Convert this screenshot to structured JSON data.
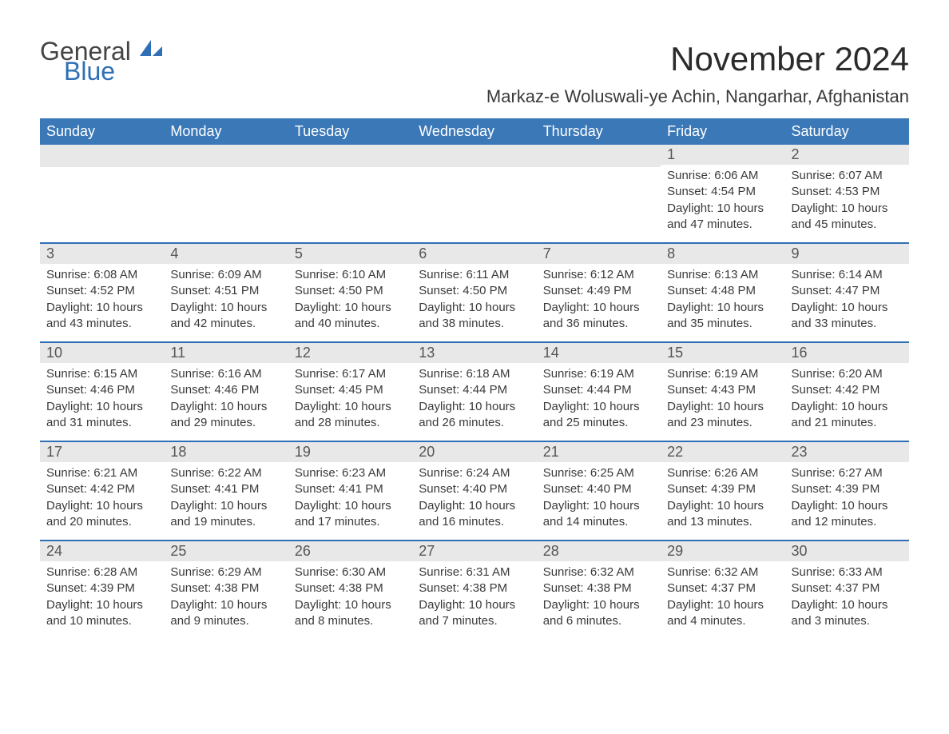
{
  "brand": {
    "general": "General",
    "blue": "Blue"
  },
  "colors": {
    "header_bg": "#3b78b8",
    "header_fg": "#ffffff",
    "daynum_bg": "#e8e8e8",
    "week_rule": "#2f6fb6",
    "text": "#3a3a3a",
    "brand_blue": "#2f6fb6",
    "page_bg": "#ffffff"
  },
  "title": "November 2024",
  "location": "Markaz-e Woluswali-ye Achin, Nangarhar, Afghanistan",
  "weekdays": [
    "Sunday",
    "Monday",
    "Tuesday",
    "Wednesday",
    "Thursday",
    "Friday",
    "Saturday"
  ],
  "layout": {
    "leading_blanks": 5,
    "days_in_month": 30
  },
  "days": {
    "1": {
      "sunrise": "6:06 AM",
      "sunset": "4:54 PM",
      "dl1": "Daylight: 10 hours",
      "dl2": "and 47 minutes."
    },
    "2": {
      "sunrise": "6:07 AM",
      "sunset": "4:53 PM",
      "dl1": "Daylight: 10 hours",
      "dl2": "and 45 minutes."
    },
    "3": {
      "sunrise": "6:08 AM",
      "sunset": "4:52 PM",
      "dl1": "Daylight: 10 hours",
      "dl2": "and 43 minutes."
    },
    "4": {
      "sunrise": "6:09 AM",
      "sunset": "4:51 PM",
      "dl1": "Daylight: 10 hours",
      "dl2": "and 42 minutes."
    },
    "5": {
      "sunrise": "6:10 AM",
      "sunset": "4:50 PM",
      "dl1": "Daylight: 10 hours",
      "dl2": "and 40 minutes."
    },
    "6": {
      "sunrise": "6:11 AM",
      "sunset": "4:50 PM",
      "dl1": "Daylight: 10 hours",
      "dl2": "and 38 minutes."
    },
    "7": {
      "sunrise": "6:12 AM",
      "sunset": "4:49 PM",
      "dl1": "Daylight: 10 hours",
      "dl2": "and 36 minutes."
    },
    "8": {
      "sunrise": "6:13 AM",
      "sunset": "4:48 PM",
      "dl1": "Daylight: 10 hours",
      "dl2": "and 35 minutes."
    },
    "9": {
      "sunrise": "6:14 AM",
      "sunset": "4:47 PM",
      "dl1": "Daylight: 10 hours",
      "dl2": "and 33 minutes."
    },
    "10": {
      "sunrise": "6:15 AM",
      "sunset": "4:46 PM",
      "dl1": "Daylight: 10 hours",
      "dl2": "and 31 minutes."
    },
    "11": {
      "sunrise": "6:16 AM",
      "sunset": "4:46 PM",
      "dl1": "Daylight: 10 hours",
      "dl2": "and 29 minutes."
    },
    "12": {
      "sunrise": "6:17 AM",
      "sunset": "4:45 PM",
      "dl1": "Daylight: 10 hours",
      "dl2": "and 28 minutes."
    },
    "13": {
      "sunrise": "6:18 AM",
      "sunset": "4:44 PM",
      "dl1": "Daylight: 10 hours",
      "dl2": "and 26 minutes."
    },
    "14": {
      "sunrise": "6:19 AM",
      "sunset": "4:44 PM",
      "dl1": "Daylight: 10 hours",
      "dl2": "and 25 minutes."
    },
    "15": {
      "sunrise": "6:19 AM",
      "sunset": "4:43 PM",
      "dl1": "Daylight: 10 hours",
      "dl2": "and 23 minutes."
    },
    "16": {
      "sunrise": "6:20 AM",
      "sunset": "4:42 PM",
      "dl1": "Daylight: 10 hours",
      "dl2": "and 21 minutes."
    },
    "17": {
      "sunrise": "6:21 AM",
      "sunset": "4:42 PM",
      "dl1": "Daylight: 10 hours",
      "dl2": "and 20 minutes."
    },
    "18": {
      "sunrise": "6:22 AM",
      "sunset": "4:41 PM",
      "dl1": "Daylight: 10 hours",
      "dl2": "and 19 minutes."
    },
    "19": {
      "sunrise": "6:23 AM",
      "sunset": "4:41 PM",
      "dl1": "Daylight: 10 hours",
      "dl2": "and 17 minutes."
    },
    "20": {
      "sunrise": "6:24 AM",
      "sunset": "4:40 PM",
      "dl1": "Daylight: 10 hours",
      "dl2": "and 16 minutes."
    },
    "21": {
      "sunrise": "6:25 AM",
      "sunset": "4:40 PM",
      "dl1": "Daylight: 10 hours",
      "dl2": "and 14 minutes."
    },
    "22": {
      "sunrise": "6:26 AM",
      "sunset": "4:39 PM",
      "dl1": "Daylight: 10 hours",
      "dl2": "and 13 minutes."
    },
    "23": {
      "sunrise": "6:27 AM",
      "sunset": "4:39 PM",
      "dl1": "Daylight: 10 hours",
      "dl2": "and 12 minutes."
    },
    "24": {
      "sunrise": "6:28 AM",
      "sunset": "4:39 PM",
      "dl1": "Daylight: 10 hours",
      "dl2": "and 10 minutes."
    },
    "25": {
      "sunrise": "6:29 AM",
      "sunset": "4:38 PM",
      "dl1": "Daylight: 10 hours",
      "dl2": "and 9 minutes."
    },
    "26": {
      "sunrise": "6:30 AM",
      "sunset": "4:38 PM",
      "dl1": "Daylight: 10 hours",
      "dl2": "and 8 minutes."
    },
    "27": {
      "sunrise": "6:31 AM",
      "sunset": "4:38 PM",
      "dl1": "Daylight: 10 hours",
      "dl2": "and 7 minutes."
    },
    "28": {
      "sunrise": "6:32 AM",
      "sunset": "4:38 PM",
      "dl1": "Daylight: 10 hours",
      "dl2": "and 6 minutes."
    },
    "29": {
      "sunrise": "6:32 AM",
      "sunset": "4:37 PM",
      "dl1": "Daylight: 10 hours",
      "dl2": "and 4 minutes."
    },
    "30": {
      "sunrise": "6:33 AM",
      "sunset": "4:37 PM",
      "dl1": "Daylight: 10 hours",
      "dl2": "and 3 minutes."
    }
  },
  "labels": {
    "sunrise": "Sunrise: ",
    "sunset": "Sunset: "
  }
}
